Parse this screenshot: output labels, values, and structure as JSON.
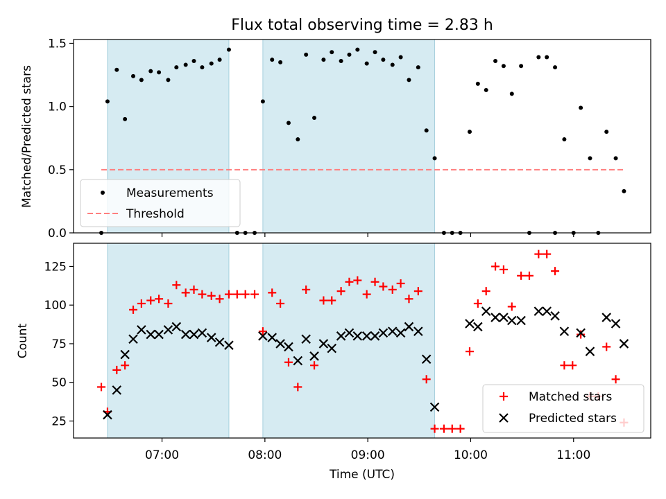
{
  "figure": {
    "title": "Flux total observing time = 2.83 h",
    "xlabel": "Time (UTC)",
    "x_ticks": [
      "07:00",
      "08:00",
      "09:00",
      "10:00",
      "11:00"
    ]
  },
  "chart_data": [
    {
      "type": "scatter",
      "title": "Flux total observing time = 2.83 h",
      "xlabel": "Time (UTC)",
      "ylabel": "Matched/Predicted stars",
      "x_unit": "hours UTC",
      "xlim": [
        6.14,
        11.75
      ],
      "ylim": [
        0.0,
        1.53
      ],
      "y_ticks": [
        "0.0",
        "0.5",
        "1.0",
        "1.5"
      ],
      "x_ticks": [
        "07:00",
        "08:00",
        "09:00",
        "10:00",
        "11:00"
      ],
      "shaded_intervals": [
        [
          6.47,
          7.65
        ],
        [
          7.98,
          9.65
        ]
      ],
      "legend": {
        "placement": "lower left",
        "entries": [
          "Measurements",
          "Threshold"
        ]
      },
      "series": [
        {
          "name": "Measurements",
          "marker": "dot",
          "color": "#000000",
          "points": [
            [
              6.41,
              0.0
            ],
            [
              6.47,
              1.04
            ],
            [
              6.56,
              1.29
            ],
            [
              6.64,
              0.9
            ],
            [
              6.72,
              1.24
            ],
            [
              6.8,
              1.21
            ],
            [
              6.89,
              1.28
            ],
            [
              6.97,
              1.27
            ],
            [
              7.06,
              1.21
            ],
            [
              7.14,
              1.31
            ],
            [
              7.23,
              1.33
            ],
            [
              7.31,
              1.36
            ],
            [
              7.39,
              1.31
            ],
            [
              7.48,
              1.34
            ],
            [
              7.56,
              1.37
            ],
            [
              7.65,
              1.45
            ],
            [
              7.73,
              0.0
            ],
            [
              7.81,
              0.0
            ],
            [
              7.9,
              0.0
            ],
            [
              7.98,
              1.04
            ],
            [
              8.07,
              1.37
            ],
            [
              8.15,
              1.35
            ],
            [
              8.23,
              0.87
            ],
            [
              8.32,
              0.74
            ],
            [
              8.4,
              1.41
            ],
            [
              8.48,
              0.91
            ],
            [
              8.57,
              1.37
            ],
            [
              8.65,
              1.43
            ],
            [
              8.74,
              1.36
            ],
            [
              8.82,
              1.41
            ],
            [
              8.9,
              1.45
            ],
            [
              8.99,
              1.34
            ],
            [
              9.07,
              1.43
            ],
            [
              9.15,
              1.37
            ],
            [
              9.24,
              1.33
            ],
            [
              9.32,
              1.39
            ],
            [
              9.4,
              1.21
            ],
            [
              9.49,
              1.31
            ],
            [
              9.57,
              0.81
            ],
            [
              9.65,
              0.59
            ],
            [
              9.74,
              0.0
            ],
            [
              9.82,
              0.0
            ],
            [
              9.9,
              0.0
            ],
            [
              9.99,
              0.8
            ],
            [
              10.07,
              1.18
            ],
            [
              10.15,
              1.13
            ],
            [
              10.24,
              1.36
            ],
            [
              10.32,
              1.32
            ],
            [
              10.4,
              1.1
            ],
            [
              10.49,
              1.32
            ],
            [
              10.66,
              1.39
            ],
            [
              10.74,
              1.39
            ],
            [
              10.82,
              1.31
            ],
            [
              10.91,
              0.74
            ],
            [
              10.82,
              0.0
            ],
            [
              11.07,
              0.99
            ],
            [
              11.16,
              0.59
            ],
            [
              11.24,
              0.0
            ],
            [
              11.32,
              0.8
            ],
            [
              11.41,
              0.59
            ],
            [
              11.49,
              0.33
            ],
            [
              10.57,
              0.0
            ],
            [
              11.0,
              0.0
            ]
          ]
        },
        {
          "name": "Threshold",
          "style": "dashed",
          "color": "#ff7f7f",
          "x": [
            6.41,
            11.49
          ],
          "values": [
            0.5,
            0.5
          ]
        }
      ]
    },
    {
      "type": "scatter",
      "xlabel": "Time (UTC)",
      "ylabel": "Count",
      "x_unit": "hours UTC",
      "xlim": [
        6.14,
        11.75
      ],
      "ylim": [
        14,
        140
      ],
      "y_ticks": [
        "25",
        "50",
        "75",
        "100",
        "125"
      ],
      "x_ticks": [
        "07:00",
        "08:00",
        "09:00",
        "10:00",
        "11:00"
      ],
      "shaded_intervals": [
        [
          6.47,
          7.65
        ],
        [
          7.98,
          9.65
        ]
      ],
      "legend": {
        "placement": "lower right",
        "entries": [
          "Matched stars",
          "Predicted stars"
        ]
      },
      "series": [
        {
          "name": "Matched stars",
          "marker": "plus",
          "color": "#ff0000",
          "points": [
            [
              6.41,
              47
            ],
            [
              6.47,
              31
            ],
            [
              6.56,
              58
            ],
            [
              6.64,
              61
            ],
            [
              6.72,
              97
            ],
            [
              6.8,
              101
            ],
            [
              6.89,
              103
            ],
            [
              6.97,
              104
            ],
            [
              7.06,
              101
            ],
            [
              7.14,
              113
            ],
            [
              7.23,
              108
            ],
            [
              7.31,
              110
            ],
            [
              7.39,
              107
            ],
            [
              7.48,
              106
            ],
            [
              7.56,
              104
            ],
            [
              7.65,
              107
            ],
            [
              7.73,
              107
            ],
            [
              7.81,
              107
            ],
            [
              7.9,
              107
            ],
            [
              7.98,
              83
            ],
            [
              8.07,
              108
            ],
            [
              8.15,
              101
            ],
            [
              8.23,
              63
            ],
            [
              8.32,
              47
            ],
            [
              8.4,
              110
            ],
            [
              8.48,
              61
            ],
            [
              8.57,
              103
            ],
            [
              8.65,
              103
            ],
            [
              8.74,
              109
            ],
            [
              8.82,
              115
            ],
            [
              8.9,
              116
            ],
            [
              8.99,
              107
            ],
            [
              9.07,
              115
            ],
            [
              9.15,
              112
            ],
            [
              9.24,
              110
            ],
            [
              9.32,
              114
            ],
            [
              9.4,
              104
            ],
            [
              9.49,
              109
            ],
            [
              9.57,
              52
            ],
            [
              9.65,
              20
            ],
            [
              9.74,
              20
            ],
            [
              9.82,
              20
            ],
            [
              9.9,
              20
            ],
            [
              9.99,
              70
            ],
            [
              10.07,
              101
            ],
            [
              10.15,
              109
            ],
            [
              10.24,
              125
            ],
            [
              10.32,
              123
            ],
            [
              10.4,
              99
            ],
            [
              10.49,
              119
            ],
            [
              10.57,
              119
            ],
            [
              10.66,
              133
            ],
            [
              10.74,
              133
            ],
            [
              10.82,
              122
            ],
            [
              10.91,
              61
            ],
            [
              10.99,
              61
            ],
            [
              11.07,
              81
            ],
            [
              11.16,
              41
            ],
            [
              11.24,
              41
            ],
            [
              11.32,
              73
            ],
            [
              11.41,
              52
            ],
            [
              11.49,
              24
            ]
          ]
        },
        {
          "name": "Predicted stars",
          "marker": "x",
          "color": "#000000",
          "points": [
            [
              6.47,
              29
            ],
            [
              6.56,
              45
            ],
            [
              6.64,
              68
            ],
            [
              6.72,
              78
            ],
            [
              6.8,
              84
            ],
            [
              6.89,
              81
            ],
            [
              6.97,
              81
            ],
            [
              7.06,
              84
            ],
            [
              7.14,
              86
            ],
            [
              7.23,
              81
            ],
            [
              7.31,
              81
            ],
            [
              7.39,
              82
            ],
            [
              7.48,
              79
            ],
            [
              7.56,
              76
            ],
            [
              7.65,
              74
            ],
            [
              7.98,
              80
            ],
            [
              8.07,
              79
            ],
            [
              8.15,
              75
            ],
            [
              8.23,
              73
            ],
            [
              8.32,
              64
            ],
            [
              8.4,
              78
            ],
            [
              8.48,
              67
            ],
            [
              8.57,
              75
            ],
            [
              8.65,
              72
            ],
            [
              8.74,
              80
            ],
            [
              8.82,
              82
            ],
            [
              8.9,
              80
            ],
            [
              8.99,
              80
            ],
            [
              9.07,
              80
            ],
            [
              9.15,
              82
            ],
            [
              9.24,
              83
            ],
            [
              9.32,
              82
            ],
            [
              9.4,
              86
            ],
            [
              9.49,
              83
            ],
            [
              9.57,
              65
            ],
            [
              9.65,
              34
            ],
            [
              9.99,
              88
            ],
            [
              10.07,
              86
            ],
            [
              10.15,
              96
            ],
            [
              10.24,
              92
            ],
            [
              10.32,
              92
            ],
            [
              10.4,
              90
            ],
            [
              10.49,
              90
            ],
            [
              10.66,
              96
            ],
            [
              10.74,
              96
            ],
            [
              10.82,
              93
            ],
            [
              10.91,
              83
            ],
            [
              11.07,
              82
            ],
            [
              11.16,
              70
            ],
            [
              11.32,
              92
            ],
            [
              11.41,
              88
            ],
            [
              11.49,
              75
            ]
          ]
        }
      ]
    }
  ]
}
